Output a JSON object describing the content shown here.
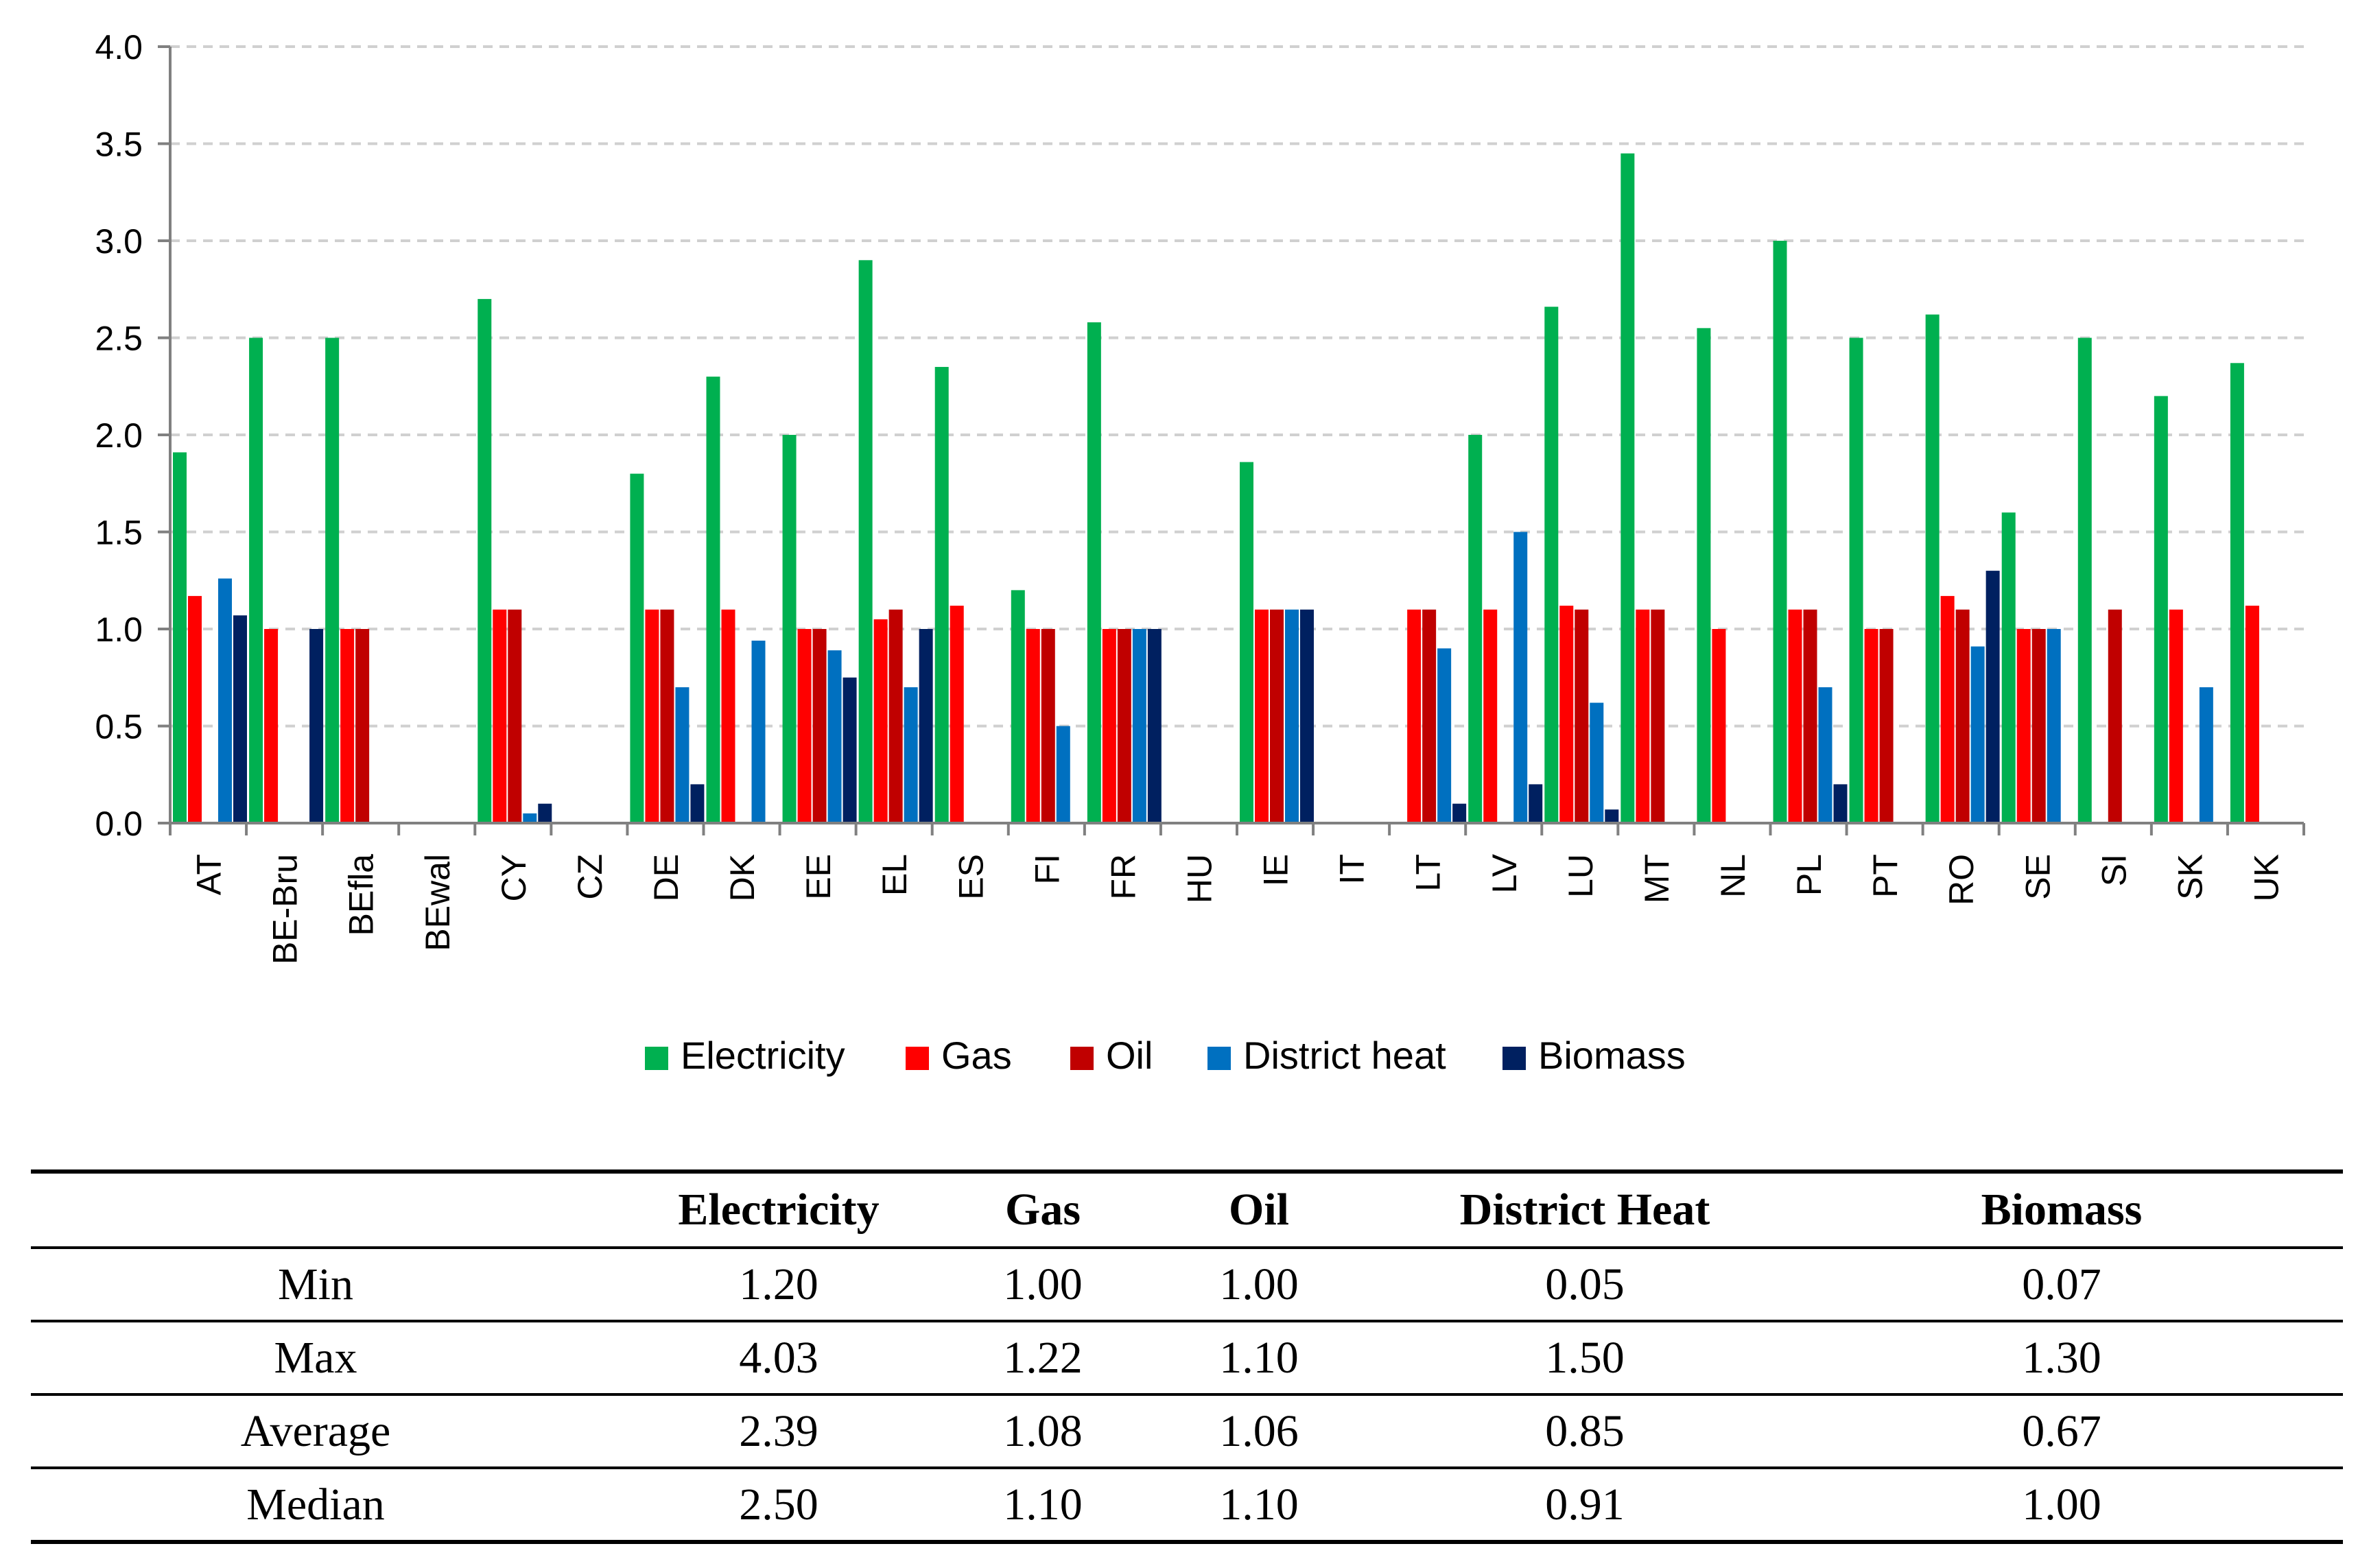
{
  "chart_data": {
    "type": "bar",
    "title": "",
    "xlabel": "",
    "ylabel": "",
    "ylim": [
      0,
      4.0
    ],
    "yticks": [
      "0.0",
      "0.5",
      "1.0",
      "1.5",
      "2.0",
      "2.5",
      "3.0",
      "3.5",
      "4.0"
    ],
    "grid": true,
    "legend_position": "bottom",
    "categories": [
      "AT",
      "BE-Bru",
      "BEfla",
      "BEwal",
      "CY",
      "CZ",
      "DE",
      "DK",
      "EE",
      "EL",
      "ES",
      "FI",
      "FR",
      "HU",
      "IE",
      "IT",
      "LT",
      "LV",
      "LU",
      "MT",
      "NL",
      "PL",
      "PT",
      "RO",
      "SE",
      "SI",
      "SK",
      "UK"
    ],
    "series": [
      {
        "name": "Electricity",
        "color": "#00B050",
        "values": [
          1.91,
          2.5,
          2.5,
          null,
          2.7,
          null,
          1.8,
          2.3,
          2.0,
          2.9,
          2.35,
          1.2,
          2.58,
          null,
          1.86,
          null,
          null,
          2.0,
          2.66,
          3.45,
          2.55,
          3.0,
          2.5,
          2.62,
          1.6,
          2.5,
          2.2,
          2.37
        ]
      },
      {
        "name": "Gas",
        "color": "#FF0000",
        "values": [
          1.17,
          1.0,
          1.0,
          null,
          1.1,
          null,
          1.1,
          1.1,
          1.0,
          1.05,
          1.12,
          1.0,
          1.0,
          null,
          1.1,
          null,
          1.1,
          1.1,
          1.12,
          1.1,
          1.0,
          1.1,
          1.0,
          1.17,
          1.0,
          null,
          1.1,
          1.12
        ]
      },
      {
        "name": "Oil",
        "color": "#C00000",
        "values": [
          null,
          null,
          1.0,
          null,
          1.1,
          null,
          1.1,
          null,
          1.0,
          1.1,
          null,
          1.0,
          1.0,
          null,
          1.1,
          null,
          1.1,
          null,
          1.1,
          1.1,
          null,
          1.1,
          1.0,
          1.1,
          1.0,
          1.1,
          null,
          null
        ]
      },
      {
        "name": "District heat",
        "color": "#0070C0",
        "values": [
          1.26,
          null,
          null,
          null,
          0.05,
          null,
          0.7,
          0.94,
          0.89,
          0.7,
          null,
          0.5,
          1.0,
          null,
          1.1,
          null,
          0.9,
          1.5,
          0.62,
          null,
          null,
          0.7,
          null,
          0.91,
          1.0,
          null,
          0.7,
          null
        ]
      },
      {
        "name": "Biomass",
        "color": "#002060",
        "values": [
          1.07,
          1.0,
          null,
          null,
          0.1,
          null,
          0.2,
          null,
          0.75,
          1.0,
          null,
          null,
          1.0,
          null,
          1.1,
          null,
          0.1,
          0.2,
          0.07,
          null,
          null,
          0.2,
          null,
          1.3,
          null,
          null,
          null,
          null
        ]
      }
    ]
  },
  "table": {
    "headers": [
      "",
      "Electricity",
      "Gas",
      "Oil",
      "District Heat",
      "Biomass"
    ],
    "rows": [
      {
        "label": "Min",
        "values": [
          "1.20",
          "1.00",
          "1.00",
          "0.05",
          "0.07"
        ]
      },
      {
        "label": "Max",
        "values": [
          "4.03",
          "1.22",
          "1.10",
          "1.50",
          "1.30"
        ]
      },
      {
        "label": "Average",
        "values": [
          "2.39",
          "1.08",
          "1.06",
          "0.85",
          "0.67"
        ]
      },
      {
        "label": "Median",
        "values": [
          "2.50",
          "1.10",
          "1.10",
          "0.91",
          "1.00"
        ]
      }
    ]
  }
}
